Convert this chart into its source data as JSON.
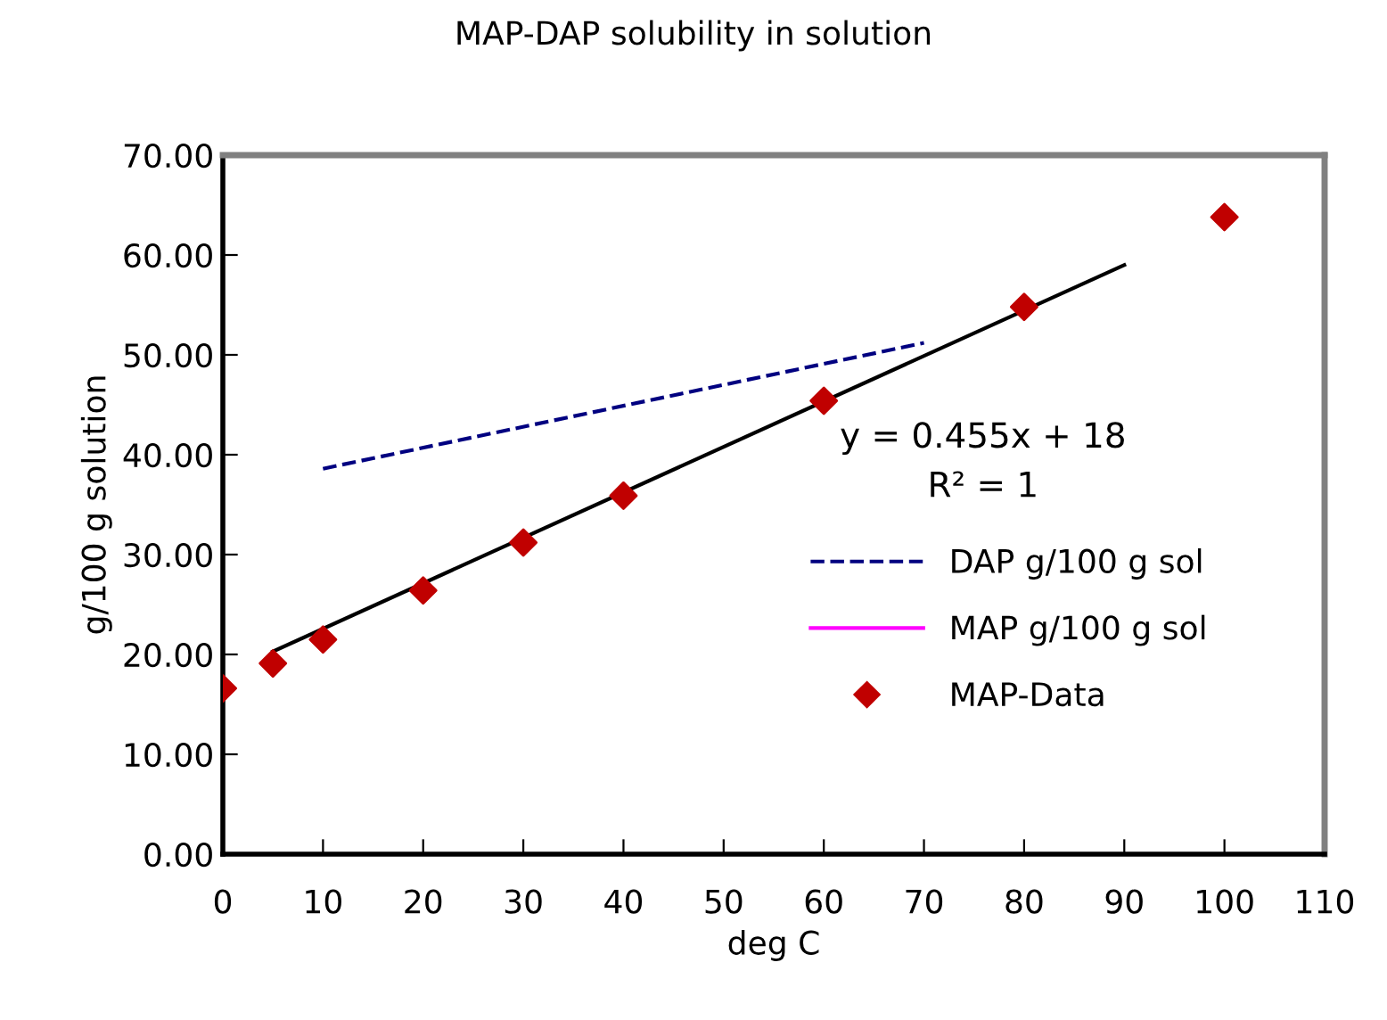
{
  "chart_data": {
    "type": "scatter",
    "title": "MAP-DAP solubility in solution",
    "xlabel": "deg C",
    "ylabel": "g/100 g solution",
    "xlim": [
      0,
      110
    ],
    "xticks": [
      0,
      10,
      20,
      30,
      40,
      50,
      60,
      70,
      80,
      90,
      100,
      110
    ],
    "ylim": [
      0,
      70
    ],
    "yticks": [
      {
        "value": 0,
        "label": "0.00"
      },
      {
        "value": 10,
        "label": "10.00"
      },
      {
        "value": 20,
        "label": "20.00"
      },
      {
        "value": 30,
        "label": "30.00"
      },
      {
        "value": 40,
        "label": "40.00"
      },
      {
        "value": 50,
        "label": "50.00"
      },
      {
        "value": 60,
        "label": "60.00"
      },
      {
        "value": 70,
        "label": "70.00"
      }
    ],
    "series": [
      {
        "name": "DAP g/100 g sol",
        "type": "line",
        "color": "#000080",
        "line_style": "dashed",
        "marker": "none",
        "x": [
          10,
          70
        ],
        "values": [
          38.6,
          51.2
        ]
      },
      {
        "name": "MAP g/100 g sol",
        "type": "line",
        "color": "#ff00ff",
        "line_style": "solid"
      },
      {
        "name": "MAP-Data",
        "color": "#c00000",
        "marker": "diamond",
        "x": [
          0,
          5,
          10,
          20,
          30,
          40,
          60,
          80,
          100
        ],
        "values": [
          16.6,
          19.1,
          21.5,
          26.4,
          31.2,
          35.9,
          45.4,
          54.8,
          63.8
        ]
      },
      {
        "type": "line",
        "color": "#000000",
        "line_style": "solid",
        "marker": "none",
        "x": [
          5,
          90
        ],
        "values": [
          20.3,
          59.0
        ]
      }
    ],
    "annotations": [
      "y = 0.455x + 18",
      "R² = 1"
    ],
    "legend": "right",
    "grid": false
  }
}
